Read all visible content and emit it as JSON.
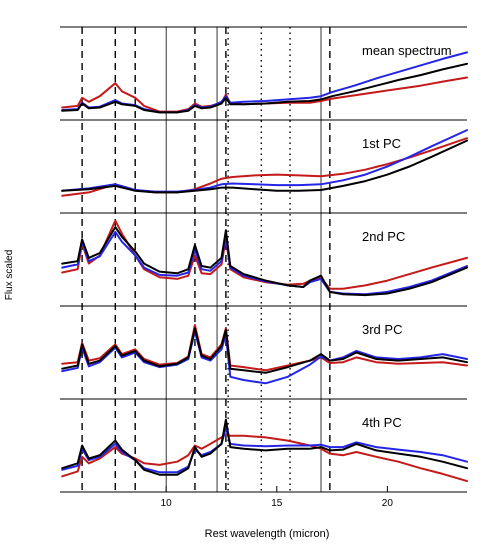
{
  "chart_data": {
    "type": "line",
    "xlabel": "Rest wavelength (micron)",
    "ylabel": "Flux scaled",
    "xlim": [
      5.2,
      23.6
    ],
    "x_ticks": [
      10,
      15,
      20
    ],
    "series_colors": {
      "black": "#000000",
      "blue": "#2525e6",
      "red": "#c41a1a"
    },
    "reference_lines": {
      "dashed": [
        6.2,
        7.7,
        8.6,
        11.3,
        12.7,
        17.4
      ],
      "dotted": [
        12.8,
        14.3,
        15.6
      ],
      "solid": [
        10.0,
        12.3,
        17.0
      ]
    },
    "panels": [
      {
        "label": "mean spectrum",
        "ylim": [
          0,
          1
        ],
        "x": [
          5.3,
          6.0,
          6.2,
          6.5,
          7.0,
          7.7,
          8.0,
          8.6,
          9.0,
          9.7,
          10.5,
          11.0,
          11.3,
          11.6,
          12.0,
          12.5,
          12.7,
          12.9,
          13.5,
          14.5,
          15.5,
          16.5,
          17.0,
          17.5,
          18.5,
          19.5,
          20.5,
          21.5,
          22.5,
          23.6
        ],
        "series": [
          {
            "color": "black",
            "values": [
              0.04,
              0.05,
              0.13,
              0.07,
              0.08,
              0.15,
              0.12,
              0.1,
              0.05,
              0.02,
              0.02,
              0.04,
              0.1,
              0.07,
              0.08,
              0.13,
              0.2,
              0.12,
              0.12,
              0.13,
              0.15,
              0.16,
              0.18,
              0.22,
              0.28,
              0.35,
              0.42,
              0.48,
              0.55,
              0.62
            ]
          },
          {
            "color": "blue",
            "values": [
              0.05,
              0.06,
              0.14,
              0.08,
              0.09,
              0.17,
              0.13,
              0.11,
              0.06,
              0.02,
              0.02,
              0.05,
              0.11,
              0.08,
              0.09,
              0.15,
              0.22,
              0.14,
              0.15,
              0.16,
              0.18,
              0.2,
              0.22,
              0.27,
              0.35,
              0.44,
              0.52,
              0.6,
              0.68,
              0.76
            ]
          },
          {
            "color": "red",
            "values": [
              0.08,
              0.1,
              0.2,
              0.15,
              0.22,
              0.38,
              0.28,
              0.2,
              0.1,
              0.03,
              0.03,
              0.06,
              0.13,
              0.09,
              0.1,
              0.14,
              0.24,
              0.13,
              0.12,
              0.13,
              0.14,
              0.14,
              0.16,
              0.19,
              0.23,
              0.27,
              0.31,
              0.35,
              0.4,
              0.45
            ]
          }
        ]
      },
      {
        "label": "1st PC",
        "ylim": [
          0,
          1
        ],
        "x": [
          5.3,
          6.5,
          7.7,
          8.6,
          9.5,
          10.5,
          11.3,
          12.0,
          12.5,
          13.0,
          14.0,
          15.0,
          16.0,
          17.0,
          18.0,
          19.0,
          20.0,
          21.0,
          22.0,
          23.6
        ],
        "series": [
          {
            "color": "black",
            "values": [
              0.2,
              0.22,
              0.26,
              0.2,
              0.18,
              0.18,
              0.2,
              0.22,
              0.24,
              0.24,
              0.22,
              0.2,
              0.2,
              0.21,
              0.26,
              0.32,
              0.4,
              0.5,
              0.62,
              0.82
            ]
          },
          {
            "color": "blue",
            "values": [
              0.2,
              0.23,
              0.28,
              0.21,
              0.19,
              0.19,
              0.21,
              0.24,
              0.28,
              0.29,
              0.28,
              0.27,
              0.27,
              0.28,
              0.33,
              0.4,
              0.5,
              0.62,
              0.75,
              0.95
            ]
          },
          {
            "color": "red",
            "values": [
              0.14,
              0.18,
              0.28,
              0.21,
              0.18,
              0.18,
              0.22,
              0.29,
              0.35,
              0.37,
              0.39,
              0.4,
              0.39,
              0.38,
              0.41,
              0.46,
              0.53,
              0.61,
              0.7,
              0.85
            ]
          }
        ]
      },
      {
        "label": "2nd PC",
        "ylim": [
          0,
          1
        ],
        "x": [
          5.3,
          6.0,
          6.2,
          6.5,
          7.0,
          7.7,
          8.0,
          8.6,
          9.0,
          9.7,
          10.5,
          11.0,
          11.3,
          11.6,
          12.0,
          12.5,
          12.7,
          12.9,
          13.5,
          14.5,
          15.5,
          16.2,
          16.5,
          17.0,
          17.4,
          18.0,
          19.0,
          20.0,
          21.0,
          22.0,
          23.6
        ],
        "series": [
          {
            "color": "black",
            "values": [
              0.45,
              0.48,
              0.75,
              0.52,
              0.58,
              0.9,
              0.78,
              0.6,
              0.45,
              0.35,
              0.33,
              0.38,
              0.68,
              0.42,
              0.4,
              0.52,
              0.86,
              0.42,
              0.32,
              0.24,
              0.18,
              0.16,
              0.24,
              0.3,
              0.1,
              0.07,
              0.06,
              0.08,
              0.14,
              0.22,
              0.4
            ]
          },
          {
            "color": "blue",
            "values": [
              0.4,
              0.44,
              0.72,
              0.48,
              0.54,
              0.84,
              0.72,
              0.55,
              0.4,
              0.31,
              0.3,
              0.34,
              0.62,
              0.38,
              0.36,
              0.48,
              0.8,
              0.4,
              0.3,
              0.23,
              0.18,
              0.16,
              0.22,
              0.26,
              0.1,
              0.08,
              0.07,
              0.1,
              0.16,
              0.24,
              0.42
            ]
          },
          {
            "color": "red",
            "values": [
              0.34,
              0.38,
              0.7,
              0.45,
              0.55,
              0.98,
              0.82,
              0.55,
              0.38,
              0.28,
              0.26,
              0.3,
              0.55,
              0.33,
              0.32,
              0.44,
              0.76,
              0.38,
              0.28,
              0.22,
              0.19,
              0.2,
              0.24,
              0.27,
              0.14,
              0.14,
              0.18,
              0.24,
              0.32,
              0.4,
              0.52
            ]
          }
        ]
      },
      {
        "label": "3rd PC",
        "ylim": [
          0,
          1
        ],
        "x": [
          5.3,
          6.0,
          6.2,
          6.5,
          7.0,
          7.7,
          8.0,
          8.6,
          9.0,
          9.7,
          10.5,
          11.0,
          11.3,
          11.6,
          12.0,
          12.5,
          12.7,
          12.9,
          13.5,
          14.5,
          15.5,
          16.5,
          17.0,
          17.4,
          18.0,
          18.6,
          19.5,
          20.5,
          21.5,
          22.5,
          23.6
        ],
        "series": [
          {
            "color": "black",
            "values": [
              0.3,
              0.34,
              0.6,
              0.36,
              0.4,
              0.58,
              0.46,
              0.52,
              0.4,
              0.33,
              0.36,
              0.44,
              0.8,
              0.46,
              0.42,
              0.58,
              0.78,
              0.3,
              0.28,
              0.25,
              0.32,
              0.4,
              0.48,
              0.4,
              0.42,
              0.5,
              0.42,
              0.4,
              0.42,
              0.44,
              0.38
            ]
          },
          {
            "color": "blue",
            "values": [
              0.27,
              0.31,
              0.56,
              0.33,
              0.38,
              0.56,
              0.44,
              0.5,
              0.38,
              0.32,
              0.35,
              0.42,
              0.76,
              0.44,
              0.4,
              0.54,
              0.72,
              0.2,
              0.16,
              0.12,
              0.2,
              0.35,
              0.45,
              0.4,
              0.44,
              0.52,
              0.44,
              0.42,
              0.44,
              0.48,
              0.42
            ]
          },
          {
            "color": "red",
            "values": [
              0.36,
              0.38,
              0.62,
              0.4,
              0.43,
              0.6,
              0.48,
              0.54,
              0.42,
              0.35,
              0.37,
              0.45,
              0.84,
              0.48,
              0.44,
              0.6,
              0.8,
              0.34,
              0.32,
              0.28,
              0.34,
              0.4,
              0.44,
              0.37,
              0.38,
              0.44,
              0.38,
              0.36,
              0.37,
              0.38,
              0.34
            ]
          }
        ]
      },
      {
        "label": "4th PC",
        "ylim": [
          0,
          1
        ],
        "x": [
          5.3,
          6.0,
          6.2,
          6.5,
          7.0,
          7.7,
          8.0,
          8.6,
          9.0,
          9.7,
          10.5,
          11.0,
          11.3,
          11.6,
          12.0,
          12.5,
          12.7,
          12.9,
          13.5,
          14.5,
          15.5,
          16.5,
          17.0,
          17.4,
          18.0,
          18.6,
          19.5,
          20.5,
          21.5,
          22.5,
          23.6
        ],
        "series": [
          {
            "color": "black",
            "values": [
              0.22,
              0.28,
              0.5,
              0.34,
              0.38,
              0.56,
              0.45,
              0.32,
              0.2,
              0.14,
              0.14,
              0.22,
              0.48,
              0.36,
              0.4,
              0.52,
              0.82,
              0.48,
              0.46,
              0.44,
              0.46,
              0.46,
              0.48,
              0.44,
              0.45,
              0.52,
              0.44,
              0.4,
              0.36,
              0.3,
              0.22
            ]
          },
          {
            "color": "blue",
            "values": [
              0.2,
              0.25,
              0.46,
              0.32,
              0.36,
              0.52,
              0.42,
              0.32,
              0.22,
              0.17,
              0.17,
              0.24,
              0.45,
              0.38,
              0.42,
              0.52,
              0.72,
              0.52,
              0.5,
              0.49,
              0.5,
              0.5,
              0.51,
              0.48,
              0.48,
              0.54,
              0.48,
              0.45,
              0.42,
              0.38,
              0.3
            ]
          },
          {
            "color": "red",
            "values": [
              0.12,
              0.18,
              0.36,
              0.28,
              0.34,
              0.48,
              0.4,
              0.34,
              0.28,
              0.26,
              0.3,
              0.38,
              0.5,
              0.46,
              0.52,
              0.6,
              0.64,
              0.62,
              0.62,
              0.6,
              0.56,
              0.5,
              0.46,
              0.4,
              0.38,
              0.42,
              0.36,
              0.3,
              0.22,
              0.15,
              0.06
            ]
          }
        ]
      }
    ]
  }
}
